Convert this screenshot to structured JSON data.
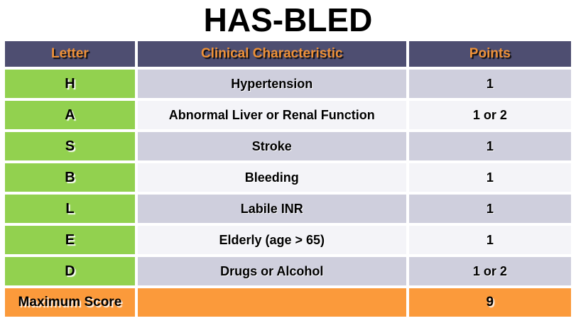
{
  "title": "HAS-BLED",
  "table": {
    "headers": {
      "letter": "Letter",
      "characteristic": "Clinical Characteristic",
      "points": "Points"
    },
    "rows": [
      {
        "letter": "H",
        "characteristic": "Hypertension",
        "points": "1"
      },
      {
        "letter": "A",
        "characteristic": "Abnormal Liver or Renal Function",
        "points": "1 or 2"
      },
      {
        "letter": "S",
        "characteristic": "Stroke",
        "points": "1"
      },
      {
        "letter": "B",
        "characteristic": "Bleeding",
        "points": "1"
      },
      {
        "letter": "L",
        "characteristic": "Labile INR",
        "points": "1"
      },
      {
        "letter": "E",
        "characteristic": "Elderly (age > 65)",
        "points": "1"
      },
      {
        "letter": "D",
        "characteristic": "Drugs or Alcohol",
        "points": "1 or 2"
      }
    ],
    "footer": {
      "label": "Maximum Score",
      "characteristic": "",
      "points": "9"
    }
  },
  "colors": {
    "header_bg": "#4E4E71",
    "header_text": "#EE9138",
    "letter_bg": "#92D14F",
    "row_odd_bg": "#CFCFDD",
    "row_even_bg": "#F4F4F8",
    "footer_bg": "#FB9A3B",
    "body_text": "#000000"
  }
}
